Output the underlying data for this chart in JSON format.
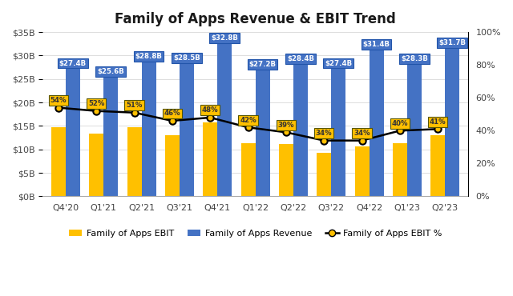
{
  "categories": [
    "Q4'20",
    "Q1'21",
    "Q2'21",
    "Q3'21",
    "Q4'21",
    "Q1'22",
    "Q2'22",
    "Q3'22",
    "Q4'22",
    "Q1'23",
    "Q2'23"
  ],
  "revenue": [
    27.4,
    25.6,
    28.8,
    28.5,
    32.8,
    27.2,
    28.4,
    27.4,
    31.4,
    28.3,
    31.7
  ],
  "ebit": [
    14.8,
    13.3,
    14.7,
    13.1,
    15.8,
    11.4,
    11.1,
    9.3,
    10.7,
    11.3,
    13.0
  ],
  "ebit_pct": [
    0.54,
    0.52,
    0.51,
    0.46,
    0.48,
    0.42,
    0.39,
    0.34,
    0.34,
    0.4,
    0.41
  ],
  "ebit_pct_labels": [
    "54%",
    "52%",
    "51%",
    "46%",
    "48%",
    "42%",
    "39%",
    "34%",
    "34%",
    "40%",
    "41%"
  ],
  "revenue_labels": [
    "$27.4B",
    "$25.6B",
    "$28.8B",
    "$28.5B",
    "$32.8B",
    "$27.2B",
    "$28.4B",
    "$27.4B",
    "$31.4B",
    "$28.3B",
    "$31.7B"
  ],
  "revenue_color": "#4472C4",
  "ebit_color": "#FFC000",
  "ebit_pct_line_color": "#000000",
  "ebit_pct_marker_face": "#FFC000",
  "title": "Family of Apps Revenue & EBIT Trend",
  "legend_ebit": "Family of Apps EBIT",
  "legend_revenue": "Family of Apps Revenue",
  "legend_ebit_pct": "Family of Apps EBIT %",
  "ylim_left": [
    0,
    35
  ],
  "ylim_right": [
    0,
    1.0
  ],
  "yticks_left": [
    0,
    5,
    10,
    15,
    20,
    25,
    30,
    35
  ],
  "ytick_labels_left": [
    "$0B",
    "$5B",
    "$10B",
    "$15B",
    "$20B",
    "$25B",
    "$30B",
    "$35B"
  ],
  "yticks_right": [
    0.0,
    0.2,
    0.4,
    0.6,
    0.8,
    1.0
  ],
  "ytick_labels_right": [
    "0%",
    "20%",
    "40%",
    "60%",
    "80%",
    "100%"
  ],
  "background_color": "#ffffff",
  "bar_width": 0.38
}
